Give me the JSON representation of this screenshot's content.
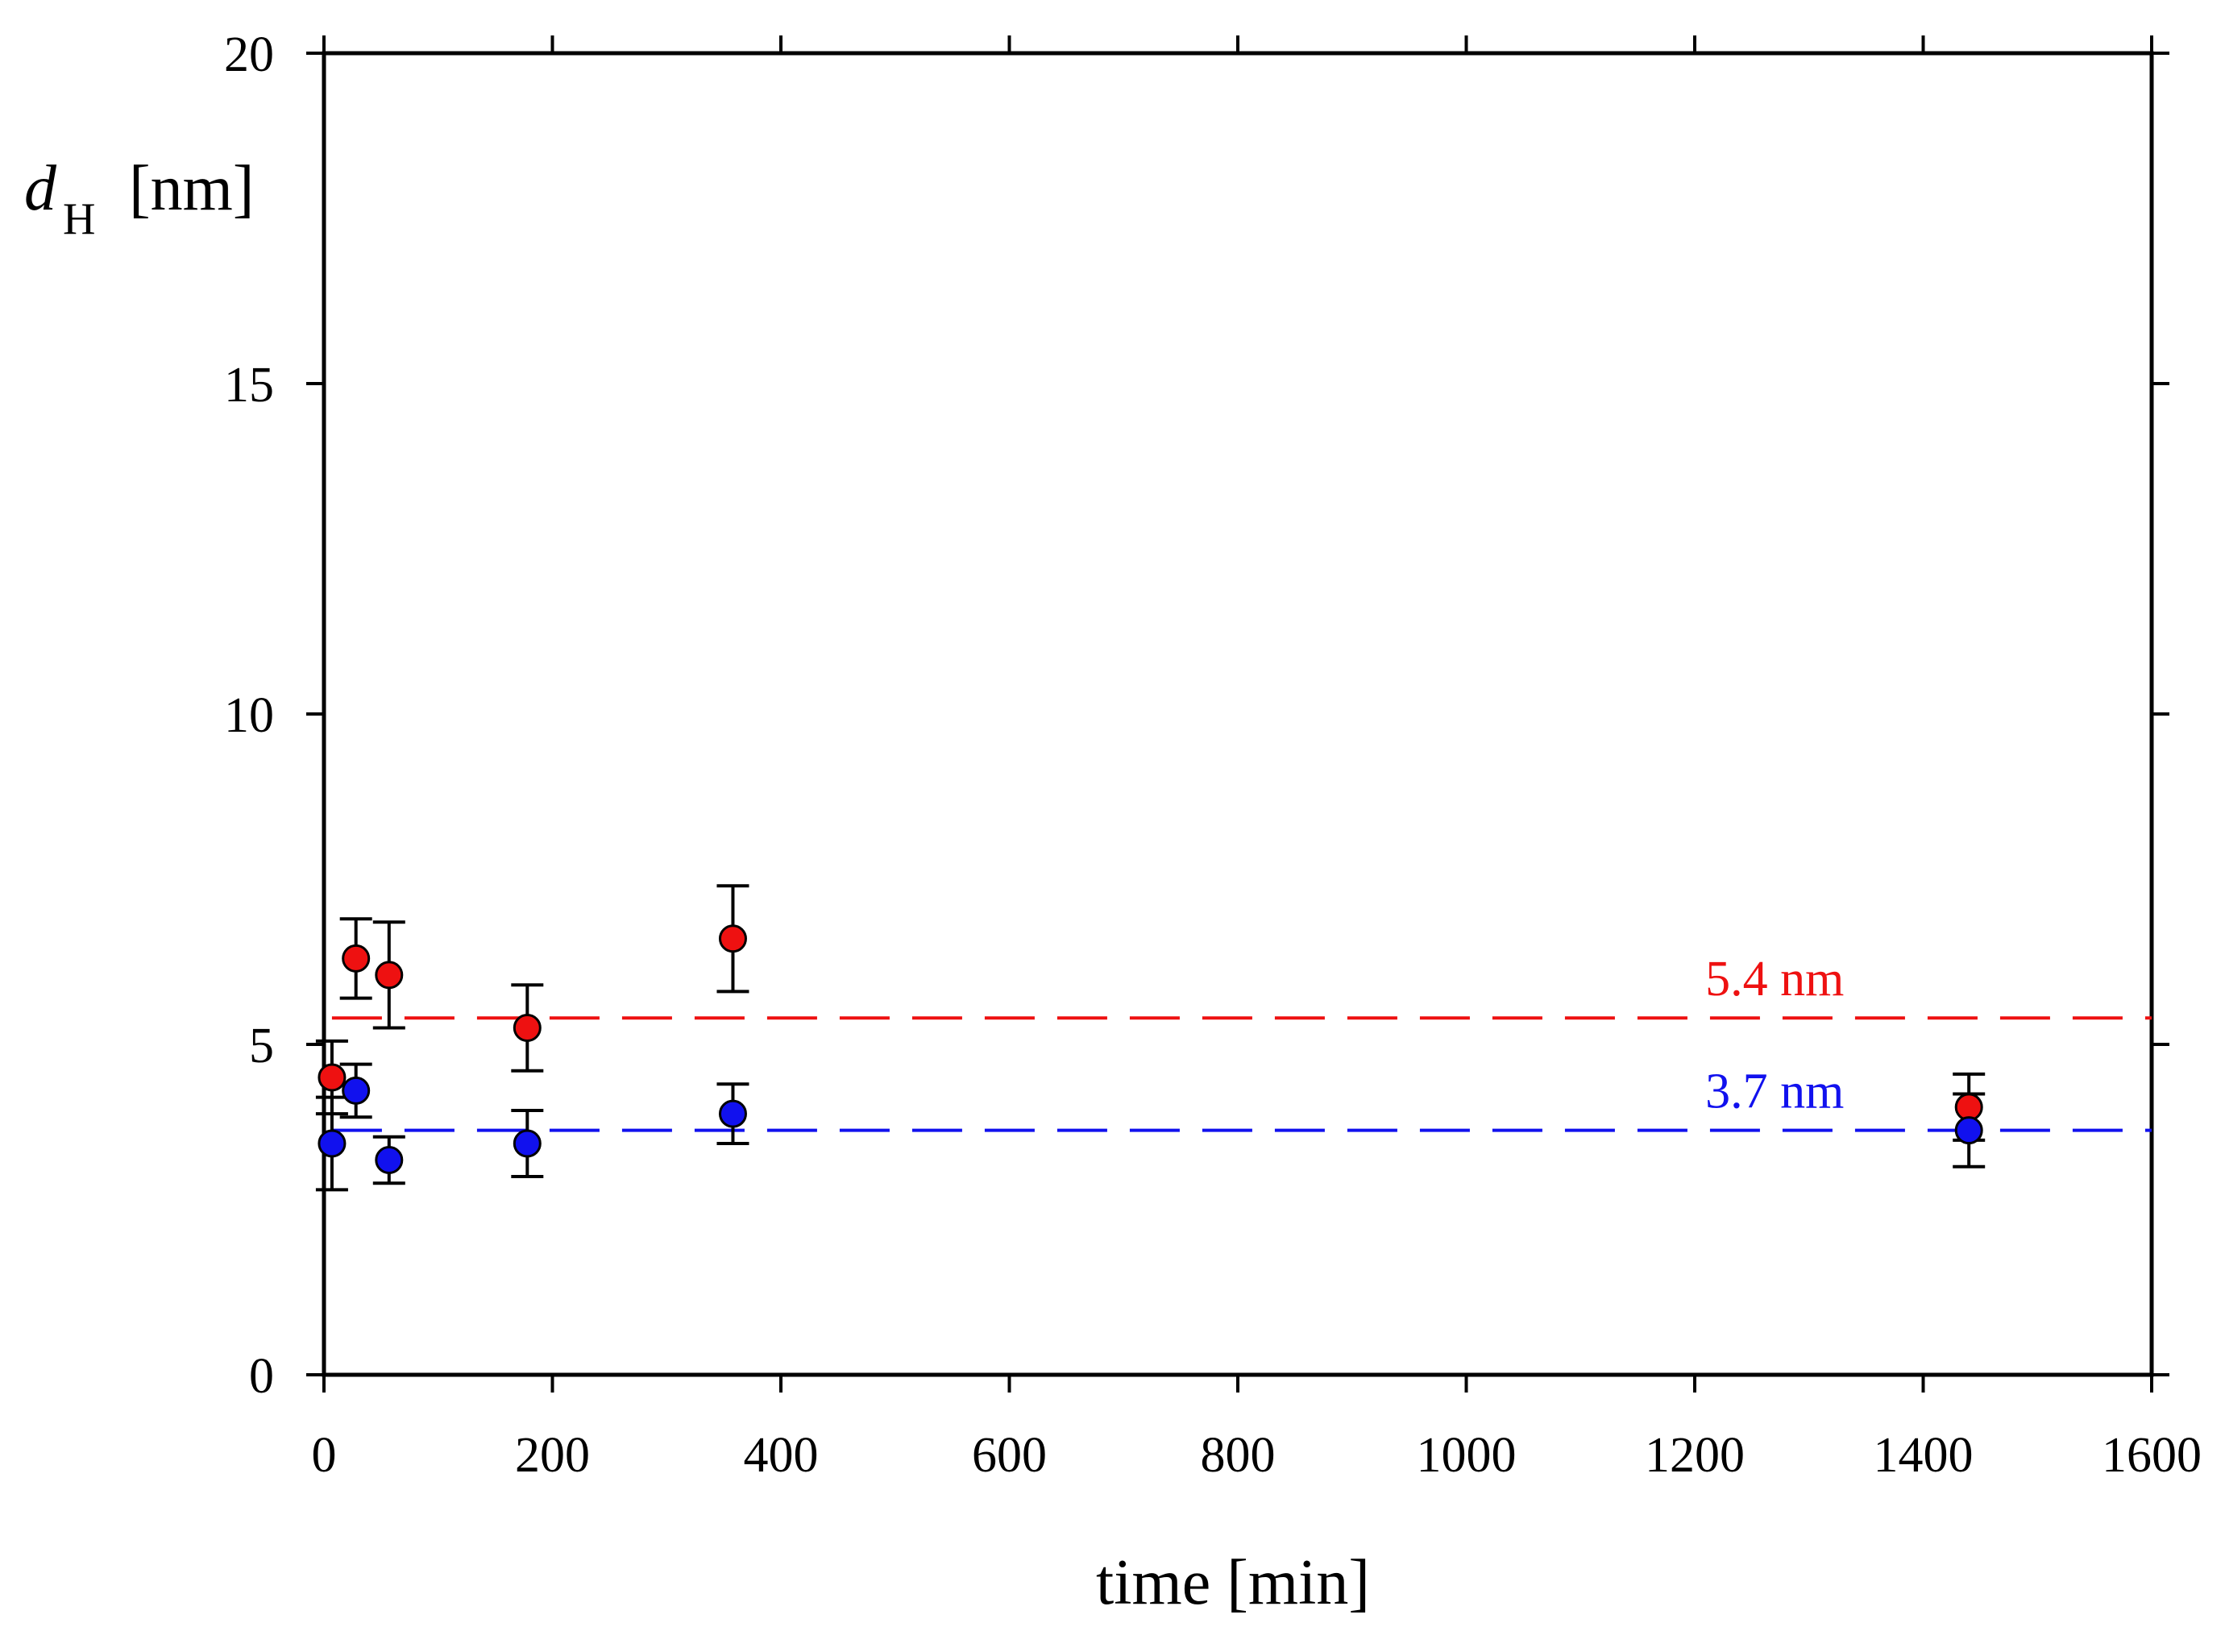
{
  "chart_data": {
    "type": "scatter",
    "title": "",
    "xlabel": "time [min]",
    "ylabel": {
      "main": "d",
      "subscript": "H",
      "unit": "[nm]"
    },
    "xlim": [
      0,
      1600
    ],
    "ylim": [
      0,
      20
    ],
    "x_ticks": [
      0,
      200,
      400,
      600,
      800,
      1000,
      1200,
      1400,
      1600
    ],
    "y_ticks": [
      0,
      5,
      10,
      15,
      20
    ],
    "grid": false,
    "series": [
      {
        "name": "red series",
        "color": "#ee1111",
        "x": [
          7,
          28,
          57,
          178,
          358,
          1440
        ],
        "y": [
          4.5,
          6.3,
          6.05,
          5.25,
          6.6,
          4.05
        ],
        "err": [
          0.55,
          0.6,
          0.8,
          0.65,
          0.8,
          0.5
        ]
      },
      {
        "name": "blue series",
        "color": "#1111ee",
        "x": [
          7,
          28,
          57,
          178,
          358,
          1440
        ],
        "y": [
          3.5,
          4.3,
          3.25,
          3.5,
          3.95,
          3.7
        ],
        "err": [
          0.7,
          0.4,
          0.35,
          0.5,
          0.45,
          0.55
        ]
      }
    ],
    "reference_lines": [
      {
        "y": 5.4,
        "label": "5.4 nm",
        "color": "#ee1111",
        "x_start": 7,
        "x_end": 1600
      },
      {
        "y": 3.7,
        "label": "3.7 nm",
        "color": "#1111ee",
        "x_start": 7,
        "x_end": 1600
      }
    ]
  }
}
